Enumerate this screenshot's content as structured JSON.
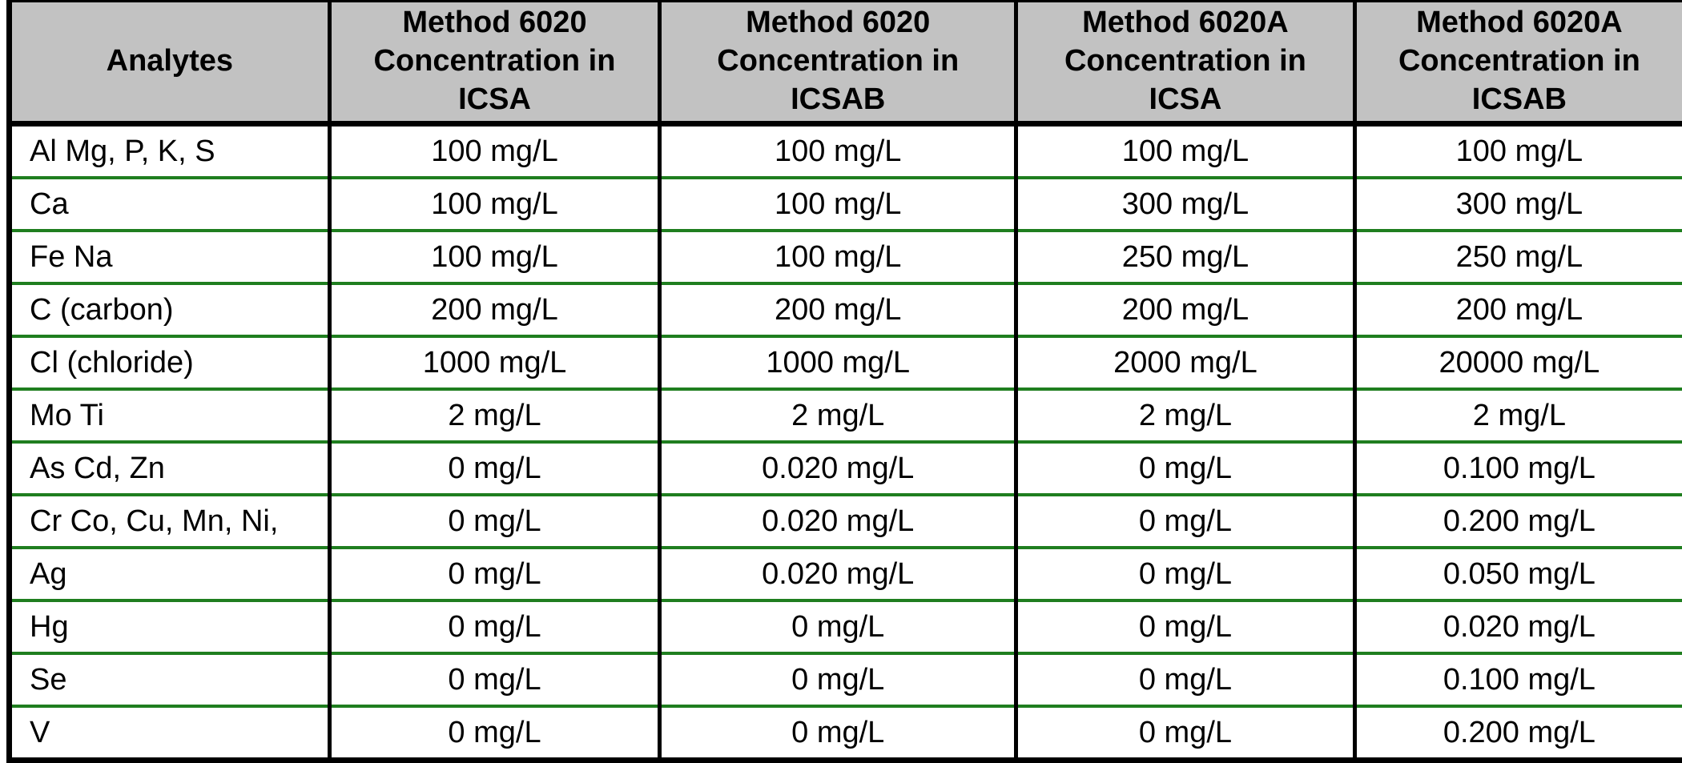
{
  "table": {
    "header": [
      "Analytes",
      "Method 6020 Concentration in ICSA",
      "Method 6020 Concentration in ICSAB",
      "Method 6020A Concentration in ICSA",
      "Method 6020A Concentration in ICSAB"
    ],
    "rows": [
      [
        "Al Mg, P, K, S",
        "100 mg/L",
        "100 mg/L",
        "100 mg/L",
        "100 mg/L"
      ],
      [
        "Ca",
        "100 mg/L",
        "100 mg/L",
        "300 mg/L",
        "300 mg/L"
      ],
      [
        "Fe Na",
        "100 mg/L",
        "100 mg/L",
        "250 mg/L",
        "250 mg/L"
      ],
      [
        "C (carbon)",
        "200 mg/L",
        "200 mg/L",
        "200 mg/L",
        "200 mg/L"
      ],
      [
        "Cl (chloride)",
        "1000 mg/L",
        "1000 mg/L",
        "2000 mg/L",
        "20000 mg/L"
      ],
      [
        "Mo Ti",
        "2 mg/L",
        "2 mg/L",
        "2 mg/L",
        "2 mg/L"
      ],
      [
        "As Cd, Zn",
        "0 mg/L",
        "0.020 mg/L",
        "0 mg/L",
        "0.100 mg/L"
      ],
      [
        "Cr Co, Cu, Mn, Ni,",
        "0 mg/L",
        "0.020 mg/L",
        "0 mg/L",
        "0.200 mg/L"
      ],
      [
        "Ag",
        "0 mg/L",
        "0.020 mg/L",
        "0 mg/L",
        "0.050 mg/L"
      ],
      [
        "Hg",
        "0 mg/L",
        "0 mg/L",
        "0 mg/L",
        "0.020 mg/L"
      ],
      [
        "Se",
        "0 mg/L",
        "0 mg/L",
        "0 mg/L",
        "0.100 mg/L"
      ],
      [
        "V",
        "0 mg/L",
        "0 mg/L",
        "0 mg/L",
        "0.200 mg/L"
      ]
    ],
    "unit": "mg/L"
  },
  "colors": {
    "header_bg": "#c2c2c2",
    "row_separator_green": "#1f7e1f",
    "grid_black": "#000000",
    "text": "#000000"
  }
}
